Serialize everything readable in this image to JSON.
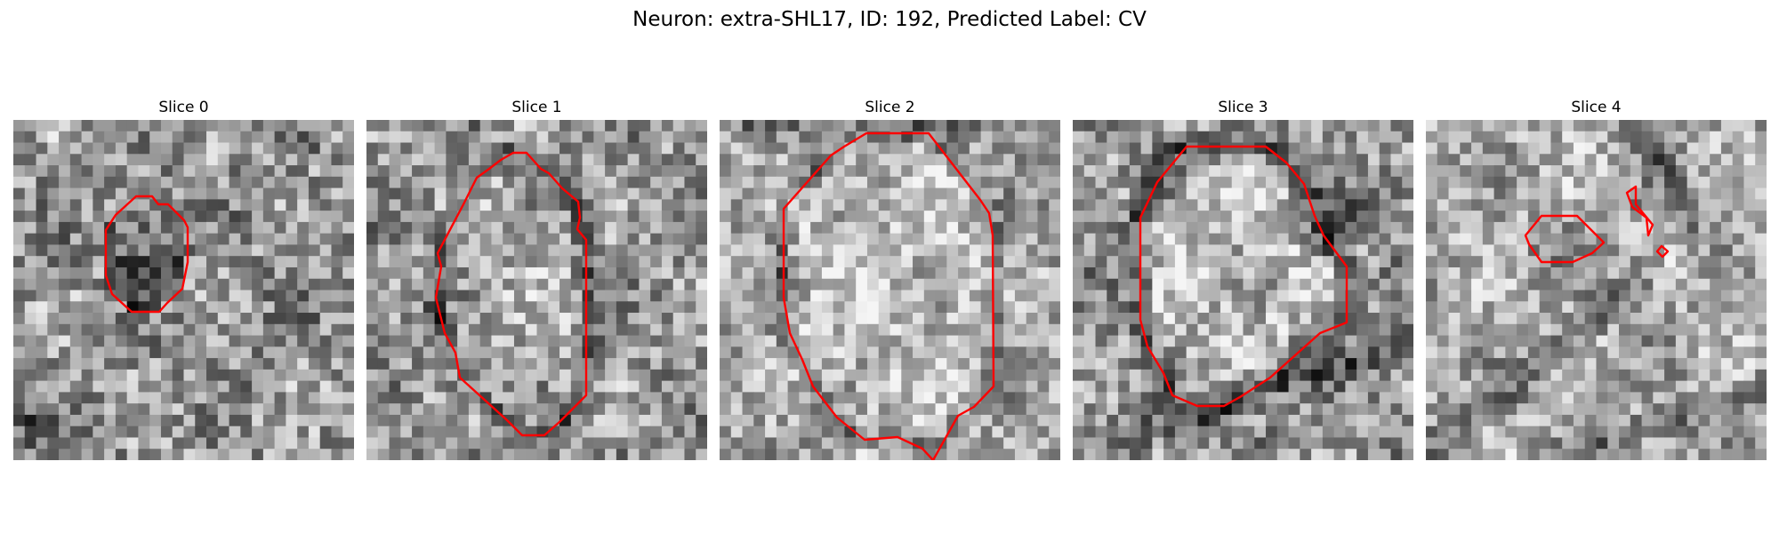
{
  "figure": {
    "title": "Neuron: extra-SHL17, ID: 192, Predicted Label: CV",
    "contour_color": "#ff0000",
    "colormap": "gray"
  },
  "panels": [
    {
      "title": "Slice 0"
    },
    {
      "title": "Slice 1"
    },
    {
      "title": "Slice 2"
    },
    {
      "title": "Slice 3"
    },
    {
      "title": "Slice 4"
    }
  ]
}
